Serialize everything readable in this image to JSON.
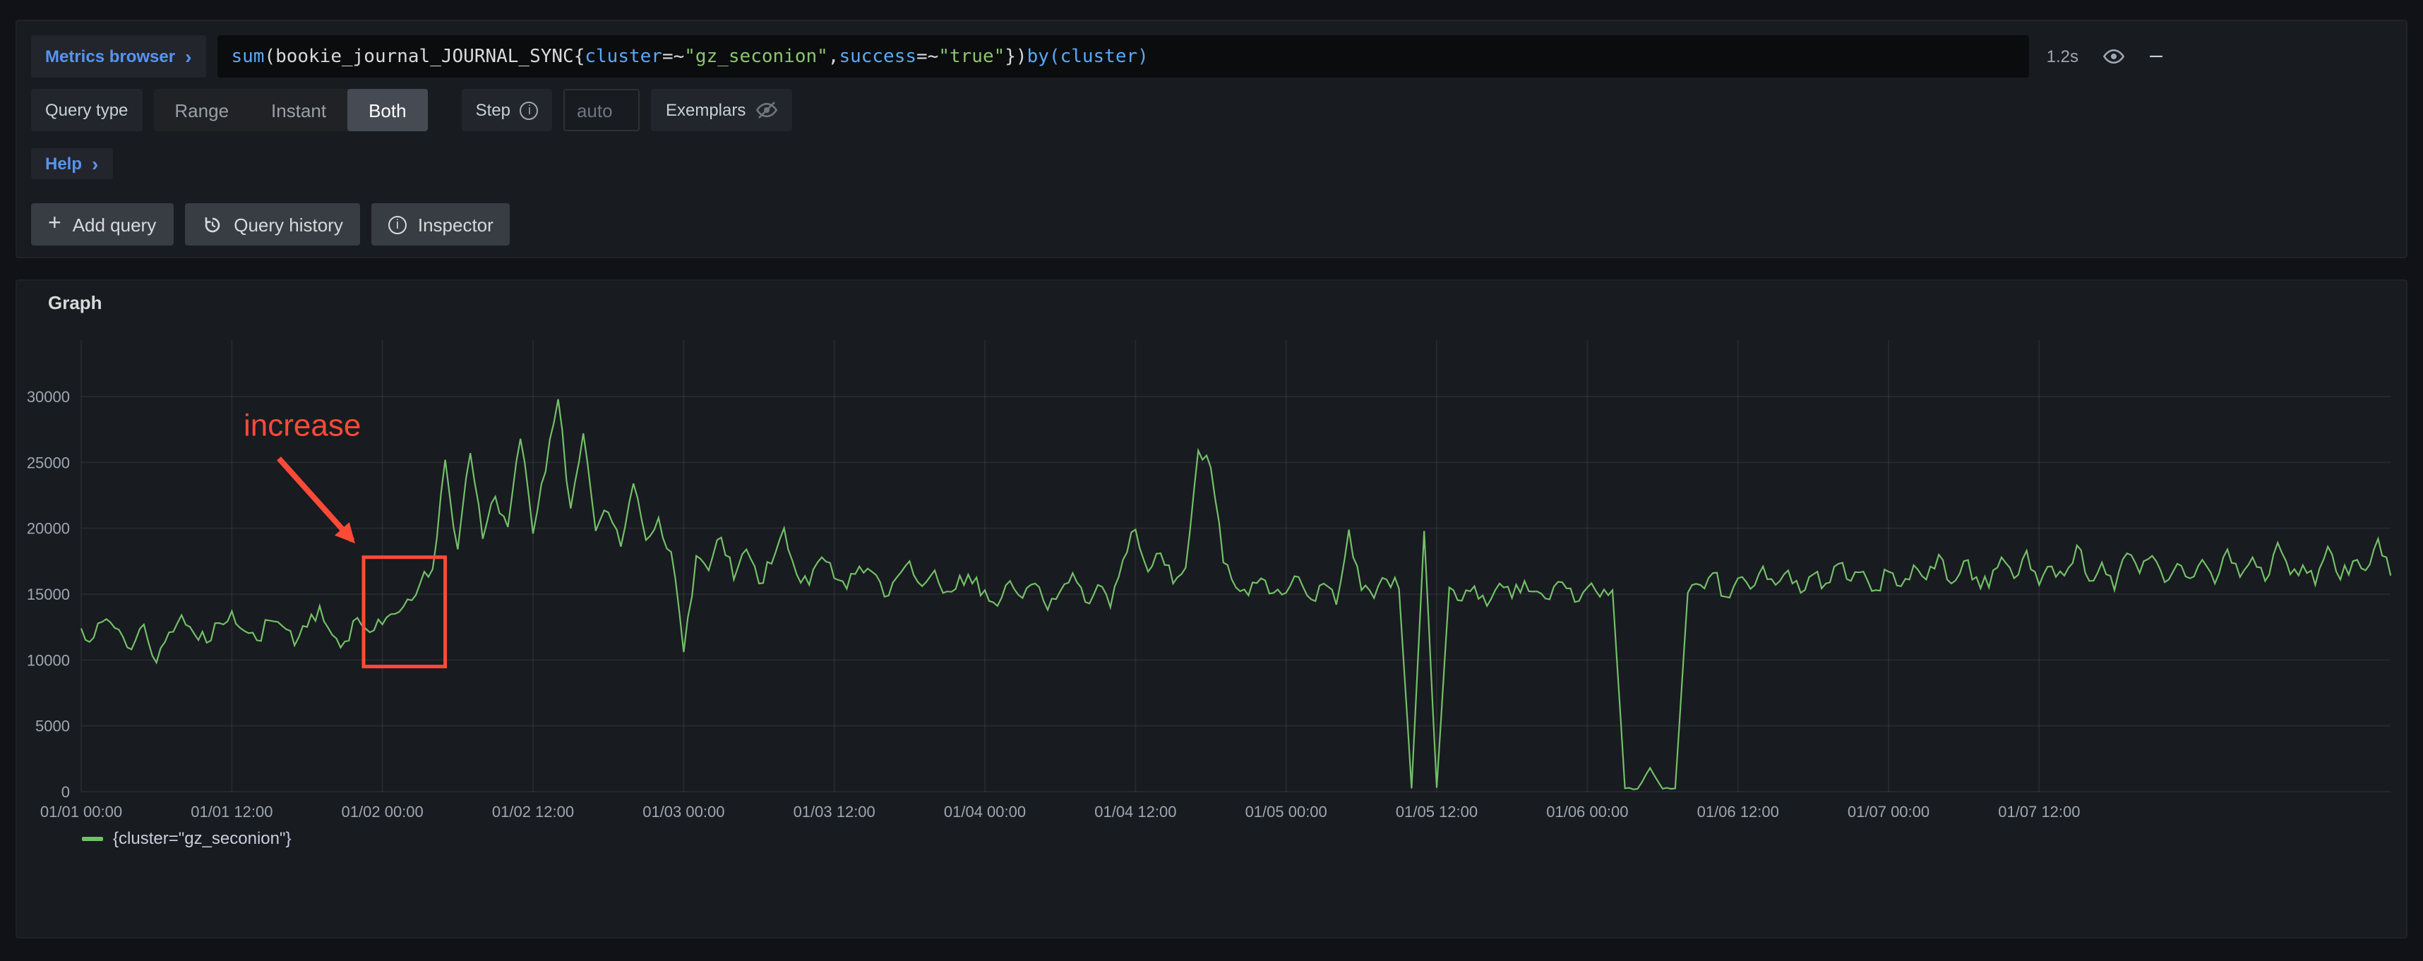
{
  "icons": {
    "chevron_right": "›",
    "plus": "+",
    "minus": "–",
    "info": "i"
  },
  "toolbar": {
    "metrics_browser_label": "Metrics browser",
    "duration": "1.2s",
    "query_tokens": [
      {
        "text": "sum",
        "color": "#59a9f7"
      },
      {
        "text": "(",
        "color": "#d8d9da"
      },
      {
        "text": "bookie_journal_JOURNAL_SYNC",
        "color": "#d8d9da"
      },
      {
        "text": "{",
        "color": "#d8d9da"
      },
      {
        "text": "cluster",
        "color": "#59a9f7"
      },
      {
        "text": "=~",
        "color": "#d8d9da"
      },
      {
        "text": "\"gz_seconion\"",
        "color": "#8cc570"
      },
      {
        "text": ",",
        "color": "#d8d9da"
      },
      {
        "text": "success",
        "color": "#59a9f7"
      },
      {
        "text": "=~",
        "color": "#d8d9da"
      },
      {
        "text": "\"true\"",
        "color": "#8cc570"
      },
      {
        "text": "})",
        "color": "#d8d9da"
      },
      {
        "text": "by",
        "color": "#59a9f7"
      },
      {
        "text": "(",
        "color": "#59a9f7"
      },
      {
        "text": "cluster",
        "color": "#59a9f7"
      },
      {
        "text": ")",
        "color": "#59a9f7"
      }
    ]
  },
  "query_options": {
    "query_type_label": "Query type",
    "types": [
      "Range",
      "Instant",
      "Both"
    ],
    "active_type": "Both",
    "step_label": "Step",
    "step_placeholder": "auto",
    "exemplars_label": "Exemplars"
  },
  "help_label": "Help",
  "actions": {
    "add_query": "Add query",
    "query_history": "Query history",
    "inspector": "Inspector"
  },
  "panel": {
    "title": "Graph"
  },
  "chart_data": {
    "type": "line",
    "title": "Graph",
    "x_tick_labels": [
      "01/01 00:00",
      "01/01 12:00",
      "01/02 00:00",
      "01/02 12:00",
      "01/03 00:00",
      "01/03 12:00",
      "01/04 00:00",
      "01/04 12:00",
      "01/05 00:00",
      "01/05 12:00",
      "01/06 00:00",
      "01/06 12:00",
      "01/07 00:00",
      "01/07 12:00"
    ],
    "x_ticks_hours": [
      0,
      12,
      24,
      36,
      48,
      60,
      72,
      84,
      96,
      108,
      120,
      132,
      144,
      156
    ],
    "x_total_hours": 184,
    "y_ticks": [
      0,
      5000,
      10000,
      15000,
      20000,
      25000,
      30000
    ],
    "ylim": [
      0,
      32000
    ],
    "legend": [
      "{cluster=\"gz_seconion\"}"
    ],
    "legend_position": "bottom",
    "grid": true,
    "series": [
      {
        "name": "{cluster=\"gz_seconion\"}",
        "color": "#73bf69",
        "start": "01/01 00:00",
        "interval_hours": 1,
        "values": [
          12400,
          11700,
          13100,
          12300,
          10800,
          12700,
          9800,
          12100,
          13400,
          12000,
          11300,
          12800,
          13700,
          12200,
          11500,
          13000,
          12600,
          11100,
          12500,
          14100,
          11900,
          11400,
          13200,
          12100,
          12700,
          13500,
          14600,
          15800,
          16900,
          25200,
          18400,
          25700,
          19200,
          22400,
          20100,
          26800,
          19600,
          24300,
          29800,
          21500,
          27200,
          19800,
          21200,
          18600,
          23400,
          19100,
          20800,
          18200,
          10600,
          17900,
          16800,
          19300,
          16100,
          18400,
          15800,
          17300,
          20000,
          16500,
          15700,
          17800,
          16200,
          15400,
          17100,
          16700,
          14800,
          16300,
          17500,
          15600,
          16800,
          15200,
          16400,
          15800,
          15300,
          14100,
          16000,
          14700,
          15800,
          13800,
          15200,
          16600,
          14400,
          15700,
          14000,
          17600,
          19900,
          16700,
          18100,
          15800,
          17000,
          25900,
          24600,
          17400,
          15500,
          14900,
          16200,
          15100,
          15100,
          16300,
          14600,
          15800,
          14200,
          19900,
          15300,
          14700,
          16100,
          15400,
          250,
          19800,
          300,
          15500,
          14500,
          15600,
          14100,
          15800,
          14700,
          16000,
          15200,
          14600,
          15900,
          14400,
          15500,
          14800,
          15300,
          260,
          210,
          1800,
          230,
          250,
          15100,
          15700,
          16600,
          14800,
          16200,
          15400,
          17100,
          15700,
          16800,
          15100,
          16500,
          15800,
          17300,
          16000,
          16700,
          15300,
          16700,
          15600,
          17200,
          16100,
          18000,
          15800,
          17500,
          16300,
          15500,
          17800,
          16200,
          18300,
          15700,
          17100,
          16400,
          18700,
          16000,
          17400,
          15300,
          18100,
          16600,
          17900,
          15900,
          17300,
          16200,
          17600,
          15800,
          18400,
          16300,
          17800,
          16000,
          18900,
          16500,
          17200,
          15700,
          18600,
          16100,
          17500,
          16800,
          19200,
          16400
        ]
      }
    ],
    "render_noise": {
      "amplitude": 650,
      "subdivisions": 3
    },
    "annotation": {
      "text": "increase",
      "color": "#ff4a38",
      "box_time_range_hours": [
        22.5,
        29
      ],
      "box_value_range": [
        9500,
        17800
      ]
    }
  }
}
